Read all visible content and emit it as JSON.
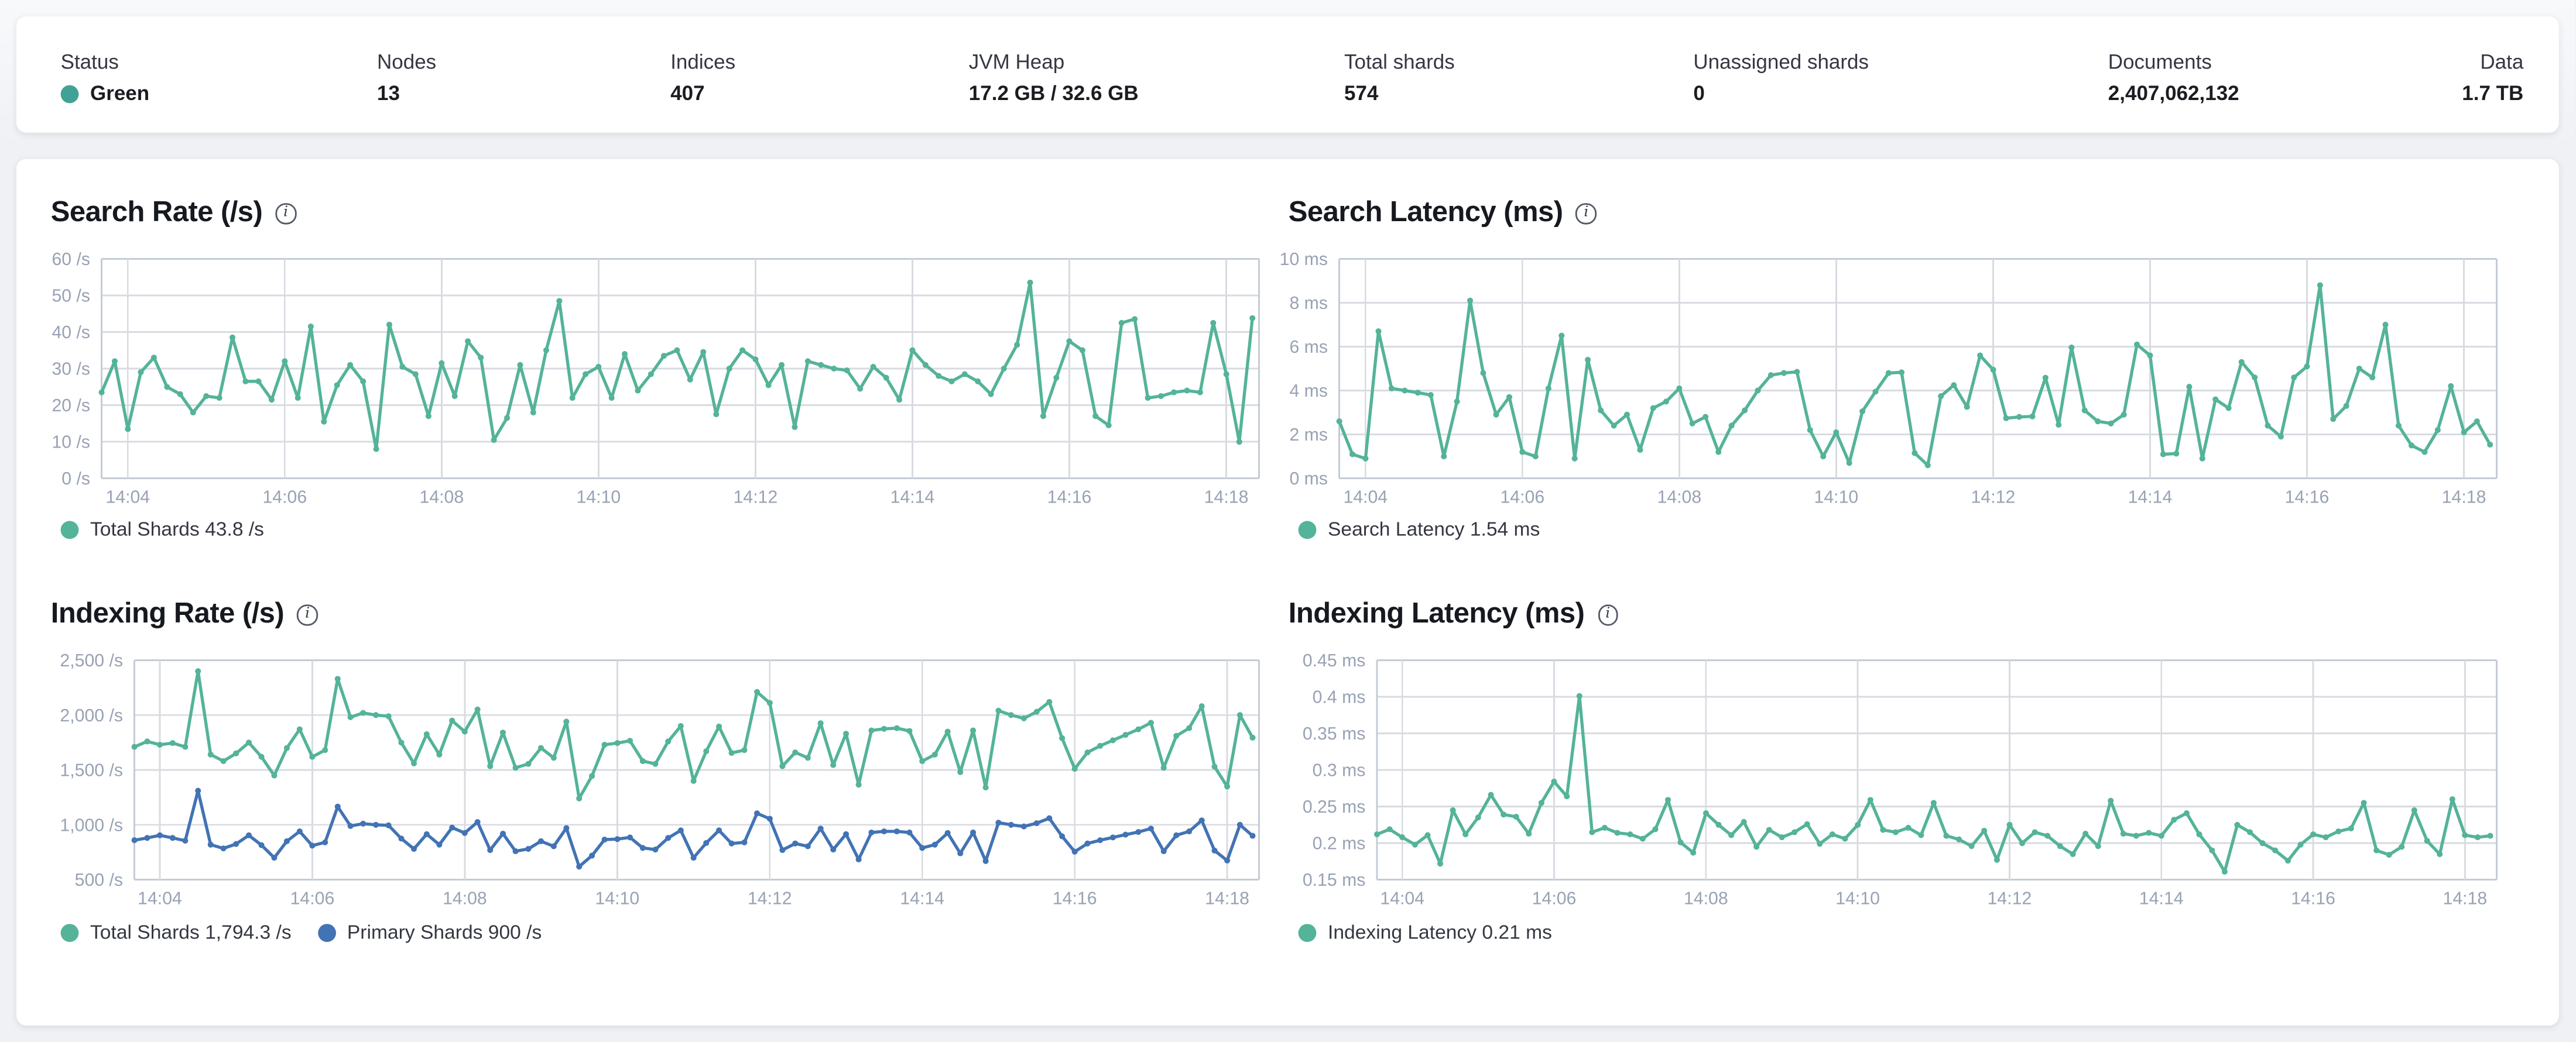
{
  "page": {
    "background_color": "#eff1f5",
    "card_color": "#ffffff"
  },
  "status_bar": {
    "stats": [
      {
        "label": "Status",
        "value": "Green",
        "dot_color": "#3fa294"
      },
      {
        "label": "Nodes",
        "value": "13"
      },
      {
        "label": "Indices",
        "value": "407"
      },
      {
        "label": "JVM Heap",
        "value": "17.2 GB / 32.6 GB"
      },
      {
        "label": "Total shards",
        "value": "574"
      },
      {
        "label": "Unassigned shards",
        "value": "0"
      },
      {
        "label": "Documents",
        "value": "2,407,062,132"
      },
      {
        "label": "Data",
        "value": "1.7 TB"
      }
    ]
  },
  "chart_colors": {
    "teal": "#54b399",
    "blue": "#4273b4",
    "gridline": "#d8dbe1",
    "border": "#c5cbd5",
    "axis_text": "#98a2b3"
  },
  "charts": [
    {
      "id": "search-rate",
      "title": "Search Rate (/s)",
      "type": "line",
      "info_icon": "i",
      "y_min": 0,
      "y_max": 60,
      "y_labels": [
        "60 /s",
        "50 /s",
        "40 /s",
        "30 /s",
        "20 /s",
        "10 /s",
        "0 /s"
      ],
      "x_labels": [
        "14:04",
        "14:06",
        "14:08",
        "14:10",
        "14:12",
        "14:14",
        "14:16",
        "14:18"
      ],
      "x_start": "14:03:40",
      "x_step_seconds": 10,
      "x_window_seconds": 885,
      "series": [
        {
          "name": "Total Shards",
          "legend": "Total Shards 43.8 /s",
          "current_value": "43.8 /s",
          "color": "#54b399",
          "values": [
            23.5,
            32,
            13.5,
            29,
            33,
            25,
            23,
            18,
            22.5,
            22,
            38.5,
            26.5,
            26.5,
            21.5,
            32,
            22,
            41.5,
            15.5,
            25.5,
            31,
            26.5,
            8,
            42,
            30.5,
            28.5,
            17,
            31.5,
            22.5,
            37.5,
            33,
            10.5,
            16.5,
            31,
            18,
            35,
            48.5,
            22,
            28.5,
            30.5,
            22,
            34,
            24,
            28.5,
            33.5,
            35,
            27,
            34.5,
            17.5,
            30,
            35,
            32.5,
            25.5,
            31,
            14,
            32,
            31,
            30,
            29.5,
            24.5,
            30.5,
            27.5,
            21.5,
            35,
            31,
            28,
            26.5,
            28.5,
            26.5,
            23,
            30,
            36.5,
            53.5,
            17,
            27.5,
            37.5,
            35,
            17,
            14.5,
            42.5,
            43.5,
            22,
            22.5,
            23.5,
            24,
            23.5,
            42.5,
            28.5,
            10,
            43.8
          ]
        }
      ]
    },
    {
      "id": "search-latency",
      "title": "Search Latency (ms)",
      "type": "line",
      "info_icon": "i",
      "y_min": 0,
      "y_max": 10,
      "y_labels": [
        "10 ms",
        "8 ms",
        "6 ms",
        "4 ms",
        "2 ms",
        "0 ms"
      ],
      "x_labels": [
        "14:04",
        "14:06",
        "14:08",
        "14:10",
        "14:12",
        "14:14",
        "14:16",
        "14:18"
      ],
      "x_start": "14:03:40",
      "x_step_seconds": 10,
      "x_window_seconds": 885,
      "series": [
        {
          "name": "Search Latency",
          "legend": "Search Latency 1.54 ms",
          "current_value": "1.54 ms",
          "color": "#54b399",
          "values": [
            2.6,
            1.1,
            0.9,
            6.7,
            4.1,
            4.0,
            3.9,
            3.8,
            1.0,
            3.5,
            8.1,
            4.8,
            2.9,
            3.7,
            1.2,
            1.0,
            4.1,
            6.5,
            0.9,
            5.4,
            3.1,
            2.4,
            2.9,
            1.3,
            3.2,
            3.5,
            4.1,
            2.5,
            2.8,
            1.2,
            2.4,
            3.1,
            4.0,
            4.7,
            4.8,
            4.85,
            2.2,
            1.0,
            2.1,
            0.7,
            3.05,
            3.95,
            4.8,
            4.83,
            1.15,
            0.6,
            3.75,
            4.25,
            3.25,
            5.6,
            4.95,
            2.74,
            2.8,
            2.82,
            4.58,
            2.44,
            5.96,
            3.1,
            2.6,
            2.5,
            2.9,
            6.1,
            5.6,
            1.1,
            1.13,
            4.17,
            0.9,
            3.6,
            3.2,
            5.3,
            4.6,
            2.4,
            1.9,
            4.6,
            5.1,
            8.8,
            2.7,
            3.3,
            5.0,
            4.6,
            7.0,
            2.4,
            1.5,
            1.2,
            2.2,
            4.2,
            2.1,
            2.6,
            1.54
          ]
        }
      ]
    },
    {
      "id": "indexing-rate",
      "title": "Indexing Rate (/s)",
      "type": "line",
      "info_icon": "i",
      "y_min": 500,
      "y_max": 2500,
      "y_labels": [
        "2,500 /s",
        "2,000 /s",
        "1,500 /s",
        "1,000 /s",
        "500 /s"
      ],
      "x_labels": [
        "14:04",
        "14:06",
        "14:08",
        "14:10",
        "14:12",
        "14:14",
        "14:16",
        "14:18"
      ],
      "x_start": "14:03:40",
      "x_step_seconds": 10,
      "x_window_seconds": 885,
      "series": [
        {
          "name": "Total Shards",
          "legend": "Total Shards 1,794.3 /s",
          "current_value": "1,794.3 /s",
          "color": "#54b399",
          "values": [
            1710,
            1760,
            1730,
            1745,
            1710,
            2400,
            1640,
            1580,
            1650,
            1750,
            1620,
            1450,
            1700,
            1870,
            1620,
            1680,
            2330,
            1980,
            2020,
            2000,
            1990,
            1750,
            1560,
            1825,
            1640,
            1950,
            1850,
            2050,
            1535,
            1840,
            1520,
            1555,
            1700,
            1610,
            1940,
            1240,
            1445,
            1730,
            1745,
            1765,
            1580,
            1555,
            1760,
            1900,
            1400,
            1670,
            1895,
            1655,
            1680,
            2210,
            2110,
            1535,
            1660,
            1610,
            1925,
            1545,
            1830,
            1365,
            1860,
            1875,
            1880,
            1855,
            1580,
            1640,
            1850,
            1480,
            1860,
            1340,
            2040,
            2000,
            1970,
            2030,
            2120,
            1790,
            1510,
            1660,
            1720,
            1770,
            1820,
            1870,
            1930,
            1520,
            1810,
            1880,
            2080,
            1530,
            1350,
            2000,
            1794.3
          ]
        },
        {
          "name": "Primary Shards",
          "legend": "Primary Shards 900 /s",
          "current_value": "900 /s",
          "color": "#4273b4",
          "values": [
            860,
            880,
            905,
            880,
            855,
            1310,
            820,
            785,
            825,
            905,
            815,
            700,
            850,
            940,
            810,
            840,
            1165,
            990,
            1010,
            1000,
            995,
            875,
            780,
            915,
            820,
            975,
            925,
            1025,
            770,
            920,
            760,
            780,
            850,
            805,
            970,
            620,
            720,
            865,
            870,
            885,
            790,
            775,
            880,
            950,
            700,
            835,
            950,
            830,
            840,
            1105,
            1055,
            770,
            830,
            805,
            965,
            775,
            915,
            685,
            930,
            940,
            940,
            930,
            790,
            820,
            925,
            740,
            930,
            670,
            1020,
            1000,
            985,
            1015,
            1060,
            895,
            755,
            830,
            860,
            885,
            910,
            935,
            965,
            760,
            905,
            940,
            1040,
            765,
            675,
            1000,
            900
          ]
        }
      ]
    },
    {
      "id": "indexing-latency",
      "title": "Indexing Latency (ms)",
      "type": "line",
      "info_icon": "i",
      "y_min": 0.15,
      "y_max": 0.45,
      "y_labels": [
        "0.45 ms",
        "0.4 ms",
        "0.35 ms",
        "0.3 ms",
        "0.25 ms",
        "0.2 ms",
        "0.15 ms"
      ],
      "x_labels": [
        "14:04",
        "14:06",
        "14:08",
        "14:10",
        "14:12",
        "14:14",
        "14:16",
        "14:18"
      ],
      "x_start": "14:03:40",
      "x_step_seconds": 10,
      "x_window_seconds": 885,
      "series": [
        {
          "name": "Indexing Latency",
          "legend": "Indexing Latency 0.21 ms",
          "current_value": "0.21 ms",
          "color": "#54b399",
          "values": [
            0.212,
            0.219,
            0.208,
            0.198,
            0.211,
            0.172,
            0.245,
            0.212,
            0.235,
            0.266,
            0.239,
            0.236,
            0.213,
            0.255,
            0.284,
            0.264,
            0.401,
            0.215,
            0.221,
            0.214,
            0.212,
            0.206,
            0.219,
            0.259,
            0.201,
            0.187,
            0.241,
            0.225,
            0.211,
            0.229,
            0.195,
            0.218,
            0.208,
            0.215,
            0.226,
            0.199,
            0.212,
            0.206,
            0.225,
            0.259,
            0.218,
            0.215,
            0.221,
            0.211,
            0.255,
            0.21,
            0.205,
            0.196,
            0.217,
            0.177,
            0.225,
            0.2,
            0.215,
            0.21,
            0.196,
            0.185,
            0.213,
            0.196,
            0.258,
            0.213,
            0.21,
            0.214,
            0.21,
            0.232,
            0.241,
            0.212,
            0.19,
            0.161,
            0.225,
            0.215,
            0.2,
            0.19,
            0.176,
            0.198,
            0.212,
            0.208,
            0.216,
            0.22,
            0.255,
            0.19,
            0.184,
            0.195,
            0.245,
            0.203,
            0.185,
            0.26,
            0.211,
            0.208,
            0.21
          ]
        }
      ]
    }
  ]
}
